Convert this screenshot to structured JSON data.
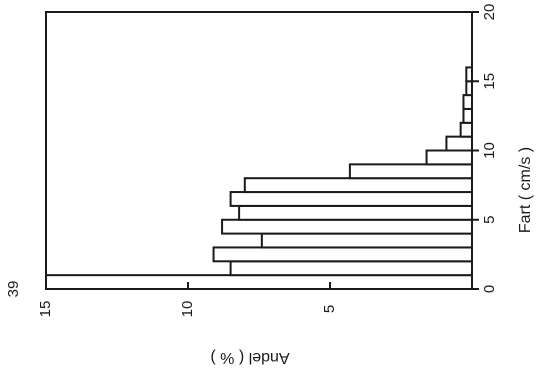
{
  "chart_data": {
    "type": "bar",
    "orientation": "rotated-histogram",
    "xlabel": "Fart ( cm/s )",
    "ylabel": "Andel ( % )",
    "xlim": [
      0,
      20
    ],
    "ylim": [
      0,
      15
    ],
    "xticks": [
      "0",
      "5",
      "10",
      "15",
      "20"
    ],
    "yticks": [
      "15",
      "10",
      "5"
    ],
    "annotation": "39",
    "grid": false,
    "bin_edges": [
      0,
      1,
      2,
      3,
      4,
      5,
      6,
      7,
      8,
      9,
      10,
      11,
      12,
      13,
      14,
      15,
      16
    ],
    "values": [
      39,
      8.5,
      9.1,
      7.4,
      8.8,
      8.2,
      8.5,
      8.0,
      4.3,
      1.6,
      0.9,
      0.4,
      0.3,
      0.3,
      0.2,
      0.2
    ]
  }
}
